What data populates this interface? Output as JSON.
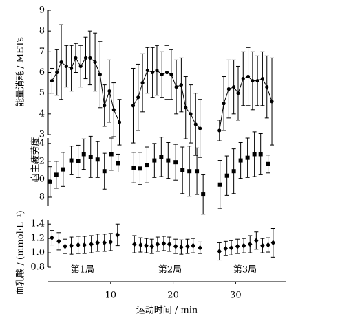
{
  "chart_data": [
    {
      "type": "line",
      "marker": "circle",
      "color": "#000000",
      "ylabel": "能量消耗 / METs",
      "ylim": [
        3,
        9
      ],
      "yticks": [
        3,
        4,
        5,
        6,
        7,
        8,
        9
      ],
      "series": [
        {
          "x": [
            0.6,
            1.4,
            2.1,
            2.9,
            3.7,
            4.4,
            5.2,
            6.0,
            6.7,
            7.5,
            8.3,
            9.0,
            9.8,
            10.5,
            11.4
          ],
          "values": [
            5.6,
            6.0,
            6.5,
            6.3,
            6.2,
            6.7,
            6.3,
            6.7,
            6.7,
            6.5,
            5.9,
            4.4,
            5.1,
            4.2,
            3.6
          ],
          "errors": [
            0.6,
            1.1,
            1.8,
            1.0,
            1.1,
            0.7,
            1.0,
            1.0,
            1.3,
            1.4,
            1.6,
            1.0,
            1.5,
            1.3,
            1.1
          ]
        },
        {
          "x": [
            13.6,
            14.4,
            15.1,
            15.9,
            16.7,
            17.4,
            18.2,
            19.0,
            19.7,
            20.5,
            21.3,
            22.0,
            22.8,
            23.6,
            24.3
          ],
          "values": [
            4.4,
            4.8,
            5.5,
            6.1,
            6.0,
            6.1,
            5.9,
            6.0,
            5.9,
            5.3,
            5.4,
            4.3,
            4.0,
            3.5,
            3.3
          ],
          "errors": [
            1.8,
            1.6,
            1.4,
            1.1,
            1.2,
            1.2,
            1.1,
            1.3,
            1.2,
            1.3,
            1.3,
            1.5,
            1.4,
            1.5,
            1.4
          ]
        },
        {
          "x": [
            27.4,
            28.1,
            28.9,
            29.7,
            30.4,
            31.2,
            32.0,
            32.7,
            33.5,
            34.3,
            35.0,
            35.8
          ],
          "values": [
            3.2,
            4.5,
            5.2,
            5.3,
            5.0,
            5.7,
            5.8,
            5.6,
            5.6,
            5.7,
            5.3,
            4.6
          ],
          "errors": [
            0.5,
            1.3,
            1.4,
            1.3,
            1.3,
            1.3,
            1.4,
            1.4,
            1.2,
            1.3,
            1.5,
            2.1
          ]
        }
      ]
    },
    {
      "type": "scatter",
      "marker": "square",
      "color": "#000000",
      "ylabel": "自主疲劳度",
      "ylim": [
        7,
        14.6
      ],
      "yticks": [
        8,
        10,
        12,
        14
      ],
      "series": [
        {
          "x": [
            0.3,
            1.3,
            2.4,
            3.7,
            4.8,
            5.7,
            6.8,
            7.9,
            9.0,
            10.1,
            11.2
          ],
          "values": [
            9.7,
            10.5,
            11.1,
            12.1,
            12.0,
            12.8,
            12.5,
            12.2,
            10.9,
            12.8,
            11.8
          ],
          "errors": [
            1.7,
            1.5,
            1.9,
            1.6,
            1.8,
            1.7,
            2.3,
            2.0,
            2.0,
            1.8,
            1.0
          ]
        },
        {
          "x": [
            13.7,
            14.7,
            15.8,
            17.0,
            18.1,
            19.2,
            20.4,
            21.5,
            22.6,
            23.8,
            24.8
          ],
          "values": [
            11.3,
            11.2,
            11.6,
            12.1,
            12.5,
            12.1,
            11.9,
            11.0,
            10.9,
            10.9,
            8.3
          ],
          "errors": [
            1.7,
            1.8,
            2.0,
            1.9,
            2.2,
            2.0,
            2.0,
            2.6,
            2.8,
            2.6,
            2.2
          ]
        },
        {
          "x": [
            27.5,
            28.6,
            29.7,
            30.8,
            31.9,
            33.0,
            34.0,
            35.2
          ],
          "values": [
            9.4,
            10.4,
            10.9,
            12.1,
            12.4,
            12.8,
            12.8,
            11.7
          ],
          "errors": [
            2.7,
            2.2,
            2.5,
            2.0,
            2.2,
            2.5,
            2.3,
            1.0
          ]
        }
      ]
    },
    {
      "type": "scatter",
      "marker": "diamond",
      "color": "#000000",
      "ylabel": "血乳酸 / (mmol·L⁻¹)",
      "ylim": [
        0.8,
        1.45
      ],
      "yticks": [
        0.8,
        {
          "value": 1.0,
          "label": "1.0"
        },
        1.2,
        1.4
      ],
      "xlim": [
        0,
        38
      ],
      "xticks": [
        10,
        20,
        30
      ],
      "xlabel": "运动时间 / min",
      "annotations": [
        {
          "text": "第1局",
          "x": 5.5
        },
        {
          "text": "第2局",
          "x": 19.5
        },
        {
          "text": "第3局",
          "x": 31.5
        }
      ],
      "series": [
        {
          "x": [
            0.6,
            1.7,
            2.7,
            3.7,
            4.8,
            5.8,
            6.9,
            7.9,
            9.0,
            10.0,
            11.1
          ],
          "values": [
            1.21,
            1.16,
            1.09,
            1.1,
            1.11,
            1.11,
            1.12,
            1.14,
            1.14,
            1.15,
            1.25
          ],
          "errors": [
            0.1,
            0.12,
            0.1,
            0.12,
            0.12,
            0.12,
            0.12,
            0.12,
            0.12,
            0.12,
            0.15
          ]
        },
        {
          "x": [
            13.8,
            14.8,
            15.7,
            16.6,
            17.5,
            18.5,
            19.4,
            20.4,
            21.3,
            22.3,
            23.2,
            24.3
          ],
          "values": [
            1.12,
            1.11,
            1.1,
            1.09,
            1.12,
            1.13,
            1.12,
            1.09,
            1.08,
            1.09,
            1.1,
            1.07
          ],
          "errors": [
            0.12,
            0.1,
            0.1,
            0.1,
            0.1,
            0.1,
            0.1,
            0.1,
            0.1,
            0.1,
            0.1,
            0.08
          ]
        },
        {
          "x": [
            27.4,
            28.4,
            29.3,
            30.3,
            31.3,
            32.3,
            33.3,
            34.3,
            35.2,
            36.0
          ],
          "values": [
            1.02,
            1.06,
            1.07,
            1.09,
            1.1,
            1.12,
            1.17,
            1.1,
            1.11,
            1.14
          ],
          "errors": [
            0.12,
            0.1,
            0.1,
            0.1,
            0.1,
            0.12,
            0.12,
            0.1,
            0.1,
            0.2
          ]
        }
      ]
    }
  ]
}
